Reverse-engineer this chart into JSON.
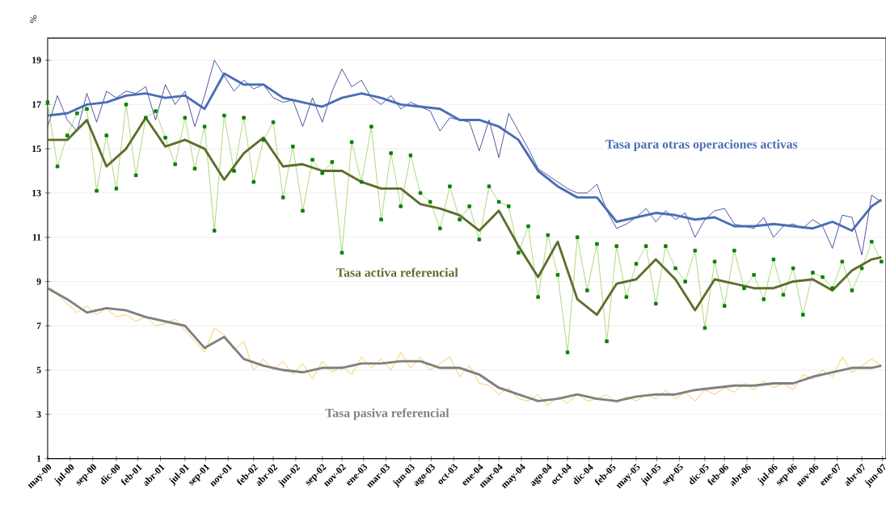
{
  "chart_data": {
    "type": "line",
    "ylabel": "%",
    "x": [
      "2000-05",
      "2000-06",
      "2000-07",
      "2000-08",
      "2000-09",
      "2000-10",
      "2000-11",
      "2000-12",
      "2001-01",
      "2001-02",
      "2001-03",
      "2001-04",
      "2001-05",
      "2001-06",
      "2001-07",
      "2001-08",
      "2001-09",
      "2001-10",
      "2001-11",
      "2001-12",
      "2002-01",
      "2002-02",
      "2002-03",
      "2002-04",
      "2002-05",
      "2002-06",
      "2002-07",
      "2002-08",
      "2002-09",
      "2002-10",
      "2002-11",
      "2002-12",
      "2003-01",
      "2003-02",
      "2003-03",
      "2003-04",
      "2003-05",
      "2003-06",
      "2003-07",
      "2003-08",
      "2003-09",
      "2003-10",
      "2003-11",
      "2003-12",
      "2004-01",
      "2004-02",
      "2004-03",
      "2004-04",
      "2004-05",
      "2004-06",
      "2004-07",
      "2004-08",
      "2004-09",
      "2004-10",
      "2004-11",
      "2004-12",
      "2005-01",
      "2005-02",
      "2005-03",
      "2005-04",
      "2005-05",
      "2005-06",
      "2005-07",
      "2005-08",
      "2005-09",
      "2005-10",
      "2005-11",
      "2005-12",
      "2006-01",
      "2006-02",
      "2006-03",
      "2006-04",
      "2006-05",
      "2006-06",
      "2006-07",
      "2006-08",
      "2006-09",
      "2006-10",
      "2006-11",
      "2006-12",
      "2007-01",
      "2007-02",
      "2007-03",
      "2007-04",
      "2007-05",
      "2007-06"
    ],
    "series": [
      {
        "color": "#1f2a8a",
        "values": [
          16.0,
          17.4,
          16.3,
          15.8,
          17.5,
          16.2,
          17.6,
          17.3,
          17.6,
          17.5,
          17.8,
          16.3,
          17.9,
          17.0,
          17.6,
          16.0,
          17.4,
          19.0,
          18.3,
          17.6,
          18.1,
          17.7,
          17.9,
          17.3,
          17.1,
          17.2,
          16.0,
          17.3,
          16.2,
          17.6,
          18.6,
          17.8,
          18.1,
          17.3,
          17.0,
          17.4,
          16.8,
          17.1,
          16.9,
          16.7,
          15.8,
          16.4,
          16.3,
          16.2,
          14.9,
          16.3,
          14.6,
          16.6,
          15.8,
          15.0,
          14.1,
          13.8,
          13.5,
          13.2,
          13.0,
          13.0,
          13.4,
          12.2,
          11.4,
          11.6,
          11.9,
          12.3,
          11.7,
          12.2,
          11.8,
          12.1,
          11.0,
          11.8,
          12.2,
          12.3,
          11.6,
          11.5,
          11.4,
          11.9,
          11.0,
          11.5,
          11.6,
          11.4,
          11.8,
          11.5,
          10.5,
          12.0,
          11.9,
          10.2,
          12.9,
          12.6
        ]
      },
      {
        "name": "Tasa para otras operaciones activas",
        "color": "#4a6db5",
        "x": [
          "2000-05",
          "2000-07",
          "2000-09",
          "2000-11",
          "2001-01",
          "2001-03",
          "2001-05",
          "2001-07",
          "2001-09",
          "2001-11",
          "2002-01",
          "2002-03",
          "2002-05",
          "2002-07",
          "2002-09",
          "2002-11",
          "2003-01",
          "2003-03",
          "2003-05",
          "2003-07",
          "2003-09",
          "2003-11",
          "2004-01",
          "2004-03",
          "2004-05",
          "2004-07",
          "2004-09",
          "2004-11",
          "2005-01",
          "2005-03",
          "2005-05",
          "2005-07",
          "2005-09",
          "2005-11",
          "2006-01",
          "2006-03",
          "2006-05",
          "2006-07",
          "2006-09",
          "2006-11",
          "2007-01",
          "2007-03",
          "2007-05",
          "2007-06"
        ],
        "values": [
          16.5,
          16.6,
          17.0,
          17.1,
          17.4,
          17.5,
          17.3,
          17.4,
          16.8,
          18.4,
          17.9,
          17.9,
          17.3,
          17.1,
          16.9,
          17.3,
          17.5,
          17.3,
          17.0,
          16.9,
          16.8,
          16.3,
          16.3,
          16.0,
          15.4,
          14.0,
          13.3,
          12.8,
          12.8,
          11.7,
          11.9,
          12.1,
          12.0,
          11.8,
          11.9,
          11.5,
          11.5,
          11.6,
          11.5,
          11.4,
          11.7,
          11.3,
          12.4,
          12.7
        ]
      },
      {
        "color": "#9acd5a",
        "marker": "square",
        "values": [
          17.1,
          14.2,
          15.6,
          16.6,
          16.8,
          13.1,
          15.6,
          13.2,
          17.0,
          13.8,
          16.4,
          16.7,
          15.5,
          14.3,
          16.4,
          14.1,
          16.0,
          11.3,
          16.5,
          14.0,
          16.4,
          13.5,
          15.4,
          16.2,
          12.8,
          15.1,
          12.2,
          14.5,
          13.9,
          14.4,
          10.3,
          15.3,
          13.5,
          16.0,
          11.8,
          14.8,
          12.4,
          14.7,
          13.0,
          12.6,
          11.4,
          13.3,
          11.8,
          12.4,
          10.9,
          13.3,
          12.6,
          12.4,
          10.3,
          11.5,
          8.3,
          11.1,
          9.3,
          5.8,
          11.0,
          8.6,
          10.7,
          6.3,
          10.6,
          8.3,
          9.8,
          10.6,
          8.0,
          10.6,
          9.6,
          9.0,
          10.4,
          6.9,
          9.9,
          7.9,
          10.4,
          8.7,
          9.3,
          8.2,
          10.0,
          8.4,
          9.6,
          7.5,
          9.4,
          9.2,
          8.7,
          9.9,
          8.6,
          9.6,
          10.8,
          9.9
        ]
      },
      {
        "name": "Tasa activa referencial",
        "color": "#5e6e2c",
        "x": [
          "2000-05",
          "2000-07",
          "2000-09",
          "2000-11",
          "2001-01",
          "2001-03",
          "2001-05",
          "2001-07",
          "2001-09",
          "2001-11",
          "2002-01",
          "2002-03",
          "2002-05",
          "2002-07",
          "2002-09",
          "2002-11",
          "2003-01",
          "2003-03",
          "2003-05",
          "2003-07",
          "2003-09",
          "2003-11",
          "2004-01",
          "2004-03",
          "2004-05",
          "2004-07",
          "2004-09",
          "2004-11",
          "2005-01",
          "2005-03",
          "2005-05",
          "2005-07",
          "2005-09",
          "2005-11",
          "2006-01",
          "2006-03",
          "2006-05",
          "2006-07",
          "2006-09",
          "2006-11",
          "2007-01",
          "2007-03",
          "2007-05",
          "2007-06"
        ],
        "values": [
          15.4,
          15.4,
          16.3,
          14.2,
          15.0,
          16.4,
          15.1,
          15.4,
          15.0,
          13.6,
          14.8,
          15.5,
          14.2,
          14.3,
          14.0,
          14.0,
          13.5,
          13.2,
          13.2,
          12.5,
          12.3,
          12.0,
          11.3,
          12.2,
          10.6,
          9.2,
          10.8,
          8.2,
          7.5,
          8.9,
          9.1,
          10.0,
          9.1,
          7.7,
          9.1,
          8.9,
          8.7,
          8.7,
          9.0,
          9.1,
          8.6,
          9.5,
          10.0,
          10.1
        ]
      },
      {
        "color": "#f2c12e",
        "values": [
          8.9,
          8.4,
          8.0,
          7.6,
          7.9,
          7.5,
          7.8,
          7.4,
          7.5,
          7.2,
          7.4,
          7.0,
          7.1,
          7.3,
          6.8,
          6.3,
          5.8,
          6.9,
          6.6,
          5.9,
          6.3,
          5.0,
          5.5,
          5.0,
          5.4,
          4.8,
          5.3,
          4.6,
          5.4,
          4.9,
          5.2,
          4.8,
          5.6,
          5.1,
          5.5,
          5.0,
          5.8,
          5.1,
          5.6,
          5.0,
          5.3,
          5.6,
          4.7,
          5.2,
          4.4,
          4.3,
          3.9,
          4.2,
          3.7,
          3.6,
          3.9,
          3.4,
          3.8,
          3.5,
          3.9,
          3.6,
          3.7,
          3.9,
          3.5,
          3.8,
          3.6,
          3.9,
          3.7,
          4.1,
          3.7,
          4.0,
          3.6,
          4.1,
          3.9,
          4.2,
          4.0,
          4.4,
          4.1,
          4.5,
          4.2,
          4.4,
          4.1,
          4.8,
          4.6,
          5.0,
          4.7,
          5.6,
          4.9,
          5.2,
          5.5,
          5.2
        ]
      },
      {
        "name": "Tasa pasiva referencial",
        "color": "#808080",
        "x": [
          "2000-05",
          "2000-07",
          "2000-09",
          "2000-11",
          "2001-01",
          "2001-03",
          "2001-05",
          "2001-07",
          "2001-09",
          "2001-11",
          "2002-01",
          "2002-03",
          "2002-05",
          "2002-07",
          "2002-09",
          "2002-11",
          "2003-01",
          "2003-03",
          "2003-05",
          "2003-07",
          "2003-09",
          "2003-11",
          "2004-01",
          "2004-03",
          "2004-05",
          "2004-07",
          "2004-09",
          "2004-11",
          "2005-01",
          "2005-03",
          "2005-05",
          "2005-07",
          "2005-09",
          "2005-11",
          "2006-01",
          "2006-03",
          "2006-05",
          "2006-07",
          "2006-09",
          "2006-11",
          "2007-01",
          "2007-03",
          "2007-05",
          "2007-06"
        ],
        "values": [
          8.7,
          8.2,
          7.6,
          7.8,
          7.7,
          7.4,
          7.2,
          7.0,
          6.0,
          6.5,
          5.5,
          5.2,
          5.0,
          4.9,
          5.1,
          5.1,
          5.3,
          5.3,
          5.4,
          5.4,
          5.1,
          5.1,
          4.8,
          4.2,
          3.9,
          3.6,
          3.7,
          3.9,
          3.7,
          3.6,
          3.8,
          3.9,
          3.9,
          4.1,
          4.2,
          4.3,
          4.3,
          4.4,
          4.4,
          4.7,
          4.9,
          5.1,
          5.1,
          5.2
        ]
      }
    ],
    "xlim": [
      "2000-05-01",
      "2007-06-15"
    ],
    "xticks": [
      {
        "value": "2000-05-01",
        "label": "may-00"
      },
      {
        "value": "2000-07-10",
        "label": "jul-00"
      },
      {
        "value": "2000-09-19",
        "label": "sep-00"
      },
      {
        "value": "2000-12-01",
        "label": "dic-00"
      },
      {
        "value": "2001-02-07",
        "label": "feb-01"
      },
      {
        "value": "2001-04-16",
        "label": "abr-01"
      },
      {
        "value": "2001-07-01",
        "label": "jul-01"
      },
      {
        "value": "2001-09-04",
        "label": "sep-01"
      },
      {
        "value": "2001-11-13",
        "label": "nov-01"
      },
      {
        "value": "2002-02-01",
        "label": "feb-02"
      },
      {
        "value": "2002-04-01",
        "label": "abr-02"
      },
      {
        "value": "2002-06-10",
        "label": "jun-02"
      },
      {
        "value": "2002-09-01",
        "label": "sep-02"
      },
      {
        "value": "2002-11-01",
        "label": "nov-02"
      },
      {
        "value": "2003-01-07",
        "label": "ene-03"
      },
      {
        "value": "2003-03-16",
        "label": "mar-03"
      },
      {
        "value": "2003-06-01",
        "label": "jun-03"
      },
      {
        "value": "2003-08-04",
        "label": "ago-03"
      },
      {
        "value": "2003-10-13",
        "label": "oct-03"
      },
      {
        "value": "2004-01-01",
        "label": "ene-04"
      },
      {
        "value": "2004-03-01",
        "label": "mar-04"
      },
      {
        "value": "2004-05-10",
        "label": "may-04"
      },
      {
        "value": "2004-08-01",
        "label": "ago-04"
      },
      {
        "value": "2004-10-01",
        "label": "oct-04"
      },
      {
        "value": "2004-12-07",
        "label": "dic-04"
      },
      {
        "value": "2005-02-16",
        "label": "feb-05"
      },
      {
        "value": "2005-05-01",
        "label": "may-05"
      },
      {
        "value": "2005-07-04",
        "label": "jul-05"
      },
      {
        "value": "2005-09-13",
        "label": "sep-05"
      },
      {
        "value": "2005-12-01",
        "label": "dic-05"
      },
      {
        "value": "2006-02-01",
        "label": "feb-06"
      },
      {
        "value": "2006-04-10",
        "label": "abr-06"
      },
      {
        "value": "2006-07-01",
        "label": "jul-06"
      },
      {
        "value": "2006-09-01",
        "label": "sep-06"
      },
      {
        "value": "2006-11-07",
        "label": "nov-06"
      },
      {
        "value": "2007-01-16",
        "label": "ene-07"
      },
      {
        "value": "2007-04-01",
        "label": "abr-07"
      },
      {
        "value": "2007-06-04",
        "label": "jun-07"
      }
    ],
    "ylim": [
      1,
      20
    ],
    "yticks": [
      1,
      3,
      5,
      7,
      9,
      11,
      13,
      15,
      17,
      19
    ],
    "grid": "y",
    "line_style": "solid"
  }
}
